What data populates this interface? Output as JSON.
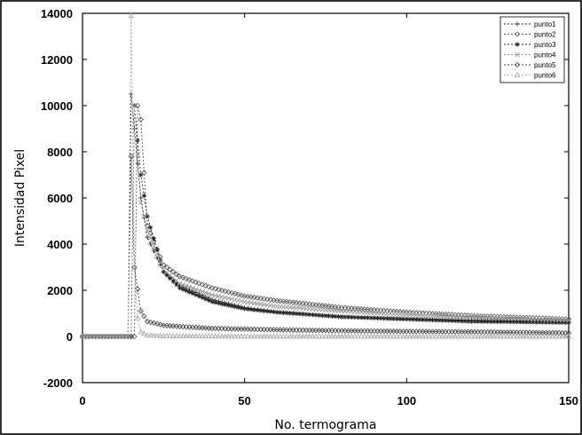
{
  "chart_data": {
    "type": "line",
    "title": "",
    "xlabel": "No. termograma",
    "ylabel": "Intensidad Pixel",
    "xlim": [
      0,
      150
    ],
    "ylim": [
      -2000,
      14000
    ],
    "xticks": [
      "0",
      "50",
      "100",
      "150"
    ],
    "yticks": [
      "-2000",
      "0",
      "2000",
      "4000",
      "6000",
      "8000",
      "10000",
      "12000",
      "14000"
    ],
    "grid": false,
    "legend_position": "top-right",
    "x_start": 0,
    "x_end": 150,
    "series": [
      {
        "name": "punto1",
        "marker": "plus",
        "color": "#222222",
        "onset": 14,
        "peak_x": 15,
        "peak": 10500,
        "tail_x": [
          18,
          20,
          25,
          30,
          40,
          50,
          60,
          80,
          100,
          120,
          150
        ],
        "tail_y": [
          6000,
          4300,
          2800,
          2200,
          1600,
          1250,
          1050,
          850,
          750,
          700,
          650
        ]
      },
      {
        "name": "punto2",
        "marker": "diamond",
        "color": "#555555",
        "onset": 16,
        "peak_x": 17,
        "peak": 10000,
        "tail_x": [
          18,
          20,
          25,
          30,
          40,
          50,
          60,
          80,
          100,
          120,
          150
        ],
        "tail_y": [
          9400,
          4800,
          3100,
          2600,
          2100,
          1750,
          1550,
          1250,
          1050,
          900,
          750
        ]
      },
      {
        "name": "punto3",
        "marker": "star",
        "color": "#222222",
        "onset": 15,
        "peak_x": 16,
        "peak": 10000,
        "tail_x": [
          18,
          20,
          25,
          30,
          40,
          50,
          60,
          80,
          100,
          120,
          150
        ],
        "tail_y": [
          7000,
          5200,
          2800,
          2100,
          1500,
          1200,
          1050,
          850,
          750,
          650,
          600
        ]
      },
      {
        "name": "punto4",
        "marker": "cross",
        "color": "#999999",
        "onset": 15,
        "peak_x": 16,
        "peak": 10000,
        "tail_x": [
          18,
          20,
          25,
          30,
          40,
          50,
          60,
          80,
          100,
          120,
          150
        ],
        "tail_y": [
          5800,
          4600,
          2900,
          2300,
          1800,
          1500,
          1300,
          1100,
          950,
          850,
          700
        ]
      },
      {
        "name": "punto5",
        "marker": "diamond",
        "color": "#444444",
        "onset": 14,
        "peak_x": 15,
        "peak": 7800,
        "tail_x": [
          16,
          18,
          20,
          25,
          30,
          40,
          50,
          60,
          80,
          100,
          120,
          150
        ],
        "tail_y": [
          3000,
          1100,
          650,
          480,
          430,
          350,
          320,
          290,
          250,
          220,
          200,
          150
        ]
      },
      {
        "name": "punto6",
        "marker": "triangle",
        "color": "#aaaaaa",
        "onset": 14,
        "peak_x": 15,
        "peak": 13900,
        "tail_x": [
          16,
          17,
          18,
          20,
          25,
          30,
          40,
          50,
          60,
          80,
          100,
          120,
          150
        ],
        "tail_y": [
          3000,
          800,
          200,
          50,
          30,
          20,
          15,
          10,
          10,
          10,
          5,
          5,
          5
        ]
      }
    ]
  }
}
